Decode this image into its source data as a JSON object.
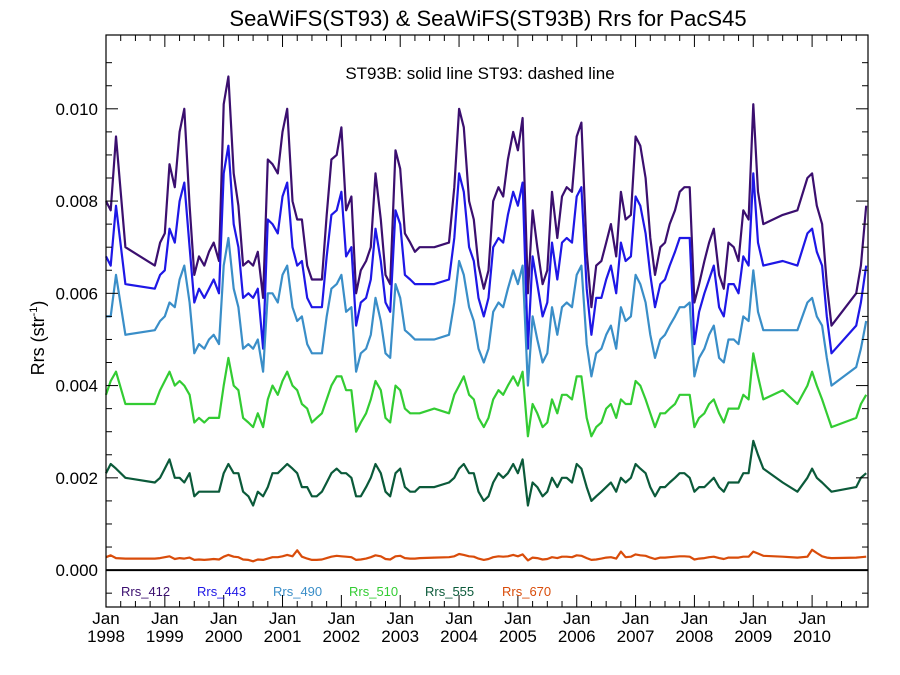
{
  "chart_data": {
    "type": "line",
    "title": "SeaWiFS(ST93) & SeaWiFS(ST93B)  Rrs for PacS45",
    "annotation": "ST93B: solid line   ST93: dashed line",
    "ylabel_main": "Rrs (str",
    "ylabel_sup": "-1",
    "ylabel_close": ")",
    "xlabel": "",
    "xlim": [
      1998.0,
      2010.95
    ],
    "ylim": [
      -0.0008,
      0.0116
    ],
    "grid": false,
    "legend_position": "bottom-left",
    "y_ticks": [
      {
        "value": 0.0,
        "label": "0.000"
      },
      {
        "value": 0.002,
        "label": "0.002"
      },
      {
        "value": 0.004,
        "label": "0.004"
      },
      {
        "value": 0.006,
        "label": "0.006"
      },
      {
        "value": 0.008,
        "label": "0.008"
      },
      {
        "value": 0.01,
        "label": "0.010"
      }
    ],
    "x_ticks": [
      {
        "value": 1998.0,
        "line1": "Jan",
        "line2": "1998"
      },
      {
        "value": 1999.0,
        "line1": "Jan",
        "line2": "1999"
      },
      {
        "value": 2000.0,
        "line1": "Jan",
        "line2": "2000"
      },
      {
        "value": 2001.0,
        "line1": "Jan",
        "line2": "2001"
      },
      {
        "value": 2002.0,
        "line1": "Jan",
        "line2": "2002"
      },
      {
        "value": 2003.0,
        "line1": "Jan",
        "line2": "2003"
      },
      {
        "value": 2004.0,
        "line1": "Jan",
        "line2": "2004"
      },
      {
        "value": 2005.0,
        "line1": "Jan",
        "line2": "2005"
      },
      {
        "value": 2006.0,
        "line1": "Jan",
        "line2": "2006"
      },
      {
        "value": 2007.0,
        "line1": "Jan",
        "line2": "2007"
      },
      {
        "value": 2008.0,
        "line1": "Jan",
        "line2": "2008"
      },
      {
        "value": 2009.0,
        "line1": "Jan",
        "line2": "2009"
      },
      {
        "value": 2010.0,
        "line1": "Jan",
        "line2": "2010"
      }
    ],
    "x": [
      1998.0,
      1998.08,
      1998.17,
      1998.33,
      1998.83,
      1998.92,
      1999.0,
      1999.08,
      1999.17,
      1999.25,
      1999.33,
      1999.42,
      1999.5,
      1999.58,
      1999.67,
      1999.75,
      1999.83,
      1999.92,
      2000.0,
      2000.08,
      2000.17,
      2000.25,
      2000.33,
      2000.42,
      2000.5,
      2000.58,
      2000.67,
      2000.75,
      2000.83,
      2000.92,
      2001.0,
      2001.08,
      2001.17,
      2001.25,
      2001.33,
      2001.42,
      2001.5,
      2001.58,
      2001.67,
      2001.75,
      2001.83,
      2001.92,
      2002.0,
      2002.08,
      2002.17,
      2002.25,
      2002.33,
      2002.42,
      2002.5,
      2002.58,
      2002.67,
      2002.75,
      2002.83,
      2002.92,
      2003.0,
      2003.08,
      2003.17,
      2003.25,
      2003.33,
      2003.58,
      2003.83,
      2003.92,
      2004.0,
      2004.08,
      2004.17,
      2004.25,
      2004.33,
      2004.42,
      2004.5,
      2004.58,
      2004.67,
      2004.75,
      2004.83,
      2004.92,
      2005.0,
      2005.08,
      2005.17,
      2005.25,
      2005.33,
      2005.42,
      2005.5,
      2005.58,
      2005.67,
      2005.75,
      2005.83,
      2005.92,
      2006.0,
      2006.08,
      2006.17,
      2006.25,
      2006.33,
      2006.42,
      2006.5,
      2006.58,
      2006.67,
      2006.75,
      2006.83,
      2006.92,
      2007.0,
      2007.08,
      2007.17,
      2007.25,
      2007.33,
      2007.42,
      2007.5,
      2007.58,
      2007.67,
      2007.75,
      2007.83,
      2007.92,
      2008.0,
      2008.08,
      2008.17,
      2008.25,
      2008.33,
      2008.42,
      2008.5,
      2008.58,
      2008.67,
      2008.75,
      2008.83,
      2008.92,
      2009.0,
      2009.08,
      2009.17,
      2009.5,
      2009.75,
      2009.92,
      2010.0,
      2010.08,
      2010.17,
      2010.25,
      2010.33,
      2010.75,
      2010.83,
      2010.92
    ],
    "series": [
      {
        "name": "Rrs_412",
        "color": "#3b0f6f",
        "values": [
          0.008,
          0.0078,
          0.0094,
          0.007,
          0.0066,
          0.0071,
          0.0073,
          0.0088,
          0.0083,
          0.0095,
          0.01,
          0.0079,
          0.0064,
          0.0068,
          0.0066,
          0.0069,
          0.0071,
          0.0067,
          0.0101,
          0.0107,
          0.0086,
          0.0079,
          0.0066,
          0.0067,
          0.0066,
          0.0069,
          0.0059,
          0.0089,
          0.0088,
          0.0086,
          0.0095,
          0.01,
          0.008,
          0.0076,
          0.0076,
          0.0066,
          0.0063,
          0.0063,
          0.0063,
          0.0077,
          0.0089,
          0.009,
          0.0096,
          0.0078,
          0.0081,
          0.006,
          0.0065,
          0.0067,
          0.007,
          0.0086,
          0.0076,
          0.0064,
          0.0062,
          0.0091,
          0.0087,
          0.0073,
          0.0071,
          0.0069,
          0.007,
          0.007,
          0.0071,
          0.0083,
          0.01,
          0.0096,
          0.008,
          0.0076,
          0.0066,
          0.0061,
          0.0065,
          0.008,
          0.0083,
          0.0081,
          0.0089,
          0.0095,
          0.0091,
          0.0098,
          0.006,
          0.0078,
          0.007,
          0.0062,
          0.0065,
          0.0082,
          0.0072,
          0.0081,
          0.0083,
          0.0082,
          0.0094,
          0.0097,
          0.0069,
          0.0057,
          0.0066,
          0.0067,
          0.0071,
          0.0075,
          0.0068,
          0.0082,
          0.0076,
          0.0077,
          0.0094,
          0.0092,
          0.0085,
          0.0072,
          0.0064,
          0.007,
          0.0071,
          0.0075,
          0.0078,
          0.0082,
          0.0083,
          0.0083,
          0.0058,
          0.0062,
          0.0067,
          0.0071,
          0.0074,
          0.0064,
          0.0061,
          0.0071,
          0.007,
          0.0067,
          0.0078,
          0.0076,
          0.0101,
          0.0082,
          0.0075,
          0.0077,
          0.0078,
          0.0085,
          0.0086,
          0.0079,
          0.0075,
          0.0062,
          0.0053,
          0.006,
          0.0066,
          0.0079
        ]
      },
      {
        "name": "Rrs_443",
        "color": "#1e17e6",
        "values": [
          0.0068,
          0.0066,
          0.0079,
          0.0062,
          0.0061,
          0.0064,
          0.0065,
          0.0074,
          0.0071,
          0.008,
          0.0084,
          0.007,
          0.0058,
          0.0061,
          0.0059,
          0.0061,
          0.0063,
          0.006,
          0.0086,
          0.0092,
          0.0075,
          0.007,
          0.0059,
          0.006,
          0.0059,
          0.0061,
          0.0048,
          0.0076,
          0.0075,
          0.0073,
          0.0081,
          0.0084,
          0.007,
          0.0066,
          0.0067,
          0.0059,
          0.0057,
          0.0057,
          0.0057,
          0.0068,
          0.0077,
          0.0078,
          0.0082,
          0.0068,
          0.007,
          0.0053,
          0.0058,
          0.0059,
          0.0063,
          0.0074,
          0.0067,
          0.0058,
          0.0056,
          0.0078,
          0.0075,
          0.0064,
          0.0063,
          0.0062,
          0.0062,
          0.0062,
          0.0063,
          0.0072,
          0.0086,
          0.0082,
          0.007,
          0.0067,
          0.0059,
          0.0055,
          0.0059,
          0.007,
          0.0072,
          0.0071,
          0.0077,
          0.0082,
          0.0079,
          0.0084,
          0.0048,
          0.0068,
          0.0062,
          0.0055,
          0.0058,
          0.0071,
          0.0063,
          0.0071,
          0.0072,
          0.0071,
          0.0081,
          0.0083,
          0.0061,
          0.0051,
          0.0059,
          0.0059,
          0.0063,
          0.0066,
          0.006,
          0.0071,
          0.0067,
          0.0068,
          0.0081,
          0.0079,
          0.0073,
          0.0064,
          0.0057,
          0.0062,
          0.0063,
          0.0066,
          0.0069,
          0.0072,
          0.0072,
          0.0072,
          0.0049,
          0.0056,
          0.006,
          0.0063,
          0.0066,
          0.0057,
          0.0055,
          0.0062,
          0.0062,
          0.006,
          0.0068,
          0.0066,
          0.0086,
          0.0071,
          0.0066,
          0.0067,
          0.0066,
          0.0073,
          0.0074,
          0.0069,
          0.0066,
          0.0055,
          0.0047,
          0.0053,
          0.0058,
          0.0066
        ]
      },
      {
        "name": "Rrs_490",
        "color": "#3a8ec8",
        "values": [
          0.0055,
          0.0055,
          0.0064,
          0.0051,
          0.0052,
          0.0054,
          0.0055,
          0.0058,
          0.0057,
          0.0063,
          0.0066,
          0.0058,
          0.0047,
          0.0049,
          0.0048,
          0.005,
          0.0051,
          0.0049,
          0.0066,
          0.0072,
          0.0061,
          0.0057,
          0.0048,
          0.0049,
          0.0048,
          0.005,
          0.0043,
          0.006,
          0.006,
          0.0058,
          0.0064,
          0.0066,
          0.0057,
          0.0054,
          0.0055,
          0.0049,
          0.0047,
          0.0047,
          0.0047,
          0.0055,
          0.0061,
          0.0062,
          0.0064,
          0.0056,
          0.0057,
          0.0043,
          0.0047,
          0.0048,
          0.0051,
          0.0059,
          0.0054,
          0.0047,
          0.0046,
          0.0062,
          0.0059,
          0.0052,
          0.0051,
          0.005,
          0.005,
          0.005,
          0.0051,
          0.0058,
          0.0067,
          0.0064,
          0.0057,
          0.0054,
          0.0048,
          0.0045,
          0.0048,
          0.0056,
          0.0058,
          0.0057,
          0.0061,
          0.0065,
          0.0062,
          0.0066,
          0.004,
          0.0055,
          0.005,
          0.0045,
          0.0047,
          0.0057,
          0.0051,
          0.0057,
          0.0058,
          0.0057,
          0.0064,
          0.0066,
          0.0049,
          0.0042,
          0.0047,
          0.0048,
          0.0051,
          0.0053,
          0.0048,
          0.0057,
          0.0054,
          0.0055,
          0.0064,
          0.0062,
          0.0058,
          0.0051,
          0.0046,
          0.005,
          0.0051,
          0.0053,
          0.0055,
          0.0057,
          0.0057,
          0.0058,
          0.0042,
          0.0046,
          0.0048,
          0.0051,
          0.0053,
          0.0046,
          0.0045,
          0.005,
          0.005,
          0.0049,
          0.0055,
          0.0054,
          0.0065,
          0.0056,
          0.0052,
          0.0052,
          0.0052,
          0.0058,
          0.0059,
          0.0055,
          0.0053,
          0.0046,
          0.004,
          0.0044,
          0.0048,
          0.0054
        ]
      },
      {
        "name": "Rrs_510",
        "color": "#33cc33",
        "values": [
          0.0038,
          0.0041,
          0.0043,
          0.0036,
          0.0036,
          0.0039,
          0.0041,
          0.0043,
          0.004,
          0.0041,
          0.004,
          0.0038,
          0.0032,
          0.0033,
          0.0032,
          0.0033,
          0.0033,
          0.0033,
          0.004,
          0.0046,
          0.004,
          0.0039,
          0.0033,
          0.0032,
          0.0031,
          0.0034,
          0.0031,
          0.0037,
          0.004,
          0.0038,
          0.0041,
          0.0043,
          0.004,
          0.0039,
          0.0036,
          0.0035,
          0.0032,
          0.0033,
          0.0034,
          0.0037,
          0.004,
          0.0042,
          0.0042,
          0.0039,
          0.0039,
          0.003,
          0.0032,
          0.0034,
          0.0037,
          0.0041,
          0.0039,
          0.0033,
          0.0032,
          0.004,
          0.0039,
          0.0035,
          0.0034,
          0.0034,
          0.0034,
          0.0035,
          0.0034,
          0.0038,
          0.004,
          0.0042,
          0.0038,
          0.0037,
          0.0033,
          0.0031,
          0.0033,
          0.0037,
          0.0039,
          0.0038,
          0.004,
          0.0042,
          0.004,
          0.0043,
          0.0029,
          0.0036,
          0.0034,
          0.0031,
          0.0032,
          0.0037,
          0.0034,
          0.0038,
          0.0038,
          0.0037,
          0.0042,
          0.0042,
          0.0033,
          0.0029,
          0.0031,
          0.0032,
          0.0035,
          0.0036,
          0.0033,
          0.0037,
          0.0036,
          0.0036,
          0.0041,
          0.004,
          0.0037,
          0.0034,
          0.0031,
          0.0034,
          0.0034,
          0.0035,
          0.0036,
          0.0038,
          0.0038,
          0.0038,
          0.0031,
          0.0033,
          0.0034,
          0.0036,
          0.0037,
          0.0034,
          0.0032,
          0.0035,
          0.0035,
          0.0035,
          0.0038,
          0.0037,
          0.0047,
          0.0042,
          0.0037,
          0.0039,
          0.0036,
          0.004,
          0.0043,
          0.004,
          0.0037,
          0.0034,
          0.0031,
          0.0033,
          0.0036,
          0.0038
        ]
      },
      {
        "name": "Rrs_555",
        "color": "#0b5a3a",
        "values": [
          0.0021,
          0.0023,
          0.0022,
          0.002,
          0.0019,
          0.002,
          0.0022,
          0.0024,
          0.002,
          0.002,
          0.0019,
          0.0021,
          0.0016,
          0.0017,
          0.0017,
          0.0017,
          0.0017,
          0.0017,
          0.0021,
          0.0023,
          0.0021,
          0.0021,
          0.0017,
          0.0016,
          0.0014,
          0.0017,
          0.0016,
          0.0018,
          0.0021,
          0.0021,
          0.0022,
          0.0023,
          0.0022,
          0.0021,
          0.0018,
          0.0018,
          0.0016,
          0.0016,
          0.0017,
          0.0019,
          0.0021,
          0.0022,
          0.0021,
          0.0021,
          0.002,
          0.0016,
          0.0016,
          0.0018,
          0.002,
          0.0023,
          0.0021,
          0.0017,
          0.0016,
          0.0021,
          0.0022,
          0.0018,
          0.0017,
          0.0017,
          0.0018,
          0.0018,
          0.0019,
          0.002,
          0.0022,
          0.0023,
          0.0021,
          0.0021,
          0.0017,
          0.0015,
          0.0016,
          0.0019,
          0.0021,
          0.002,
          0.0021,
          0.0023,
          0.0021,
          0.0024,
          0.0014,
          0.0019,
          0.0018,
          0.0016,
          0.0017,
          0.002,
          0.0018,
          0.002,
          0.002,
          0.0019,
          0.0023,
          0.0022,
          0.0018,
          0.0015,
          0.0016,
          0.0017,
          0.0018,
          0.0019,
          0.0017,
          0.002,
          0.0019,
          0.002,
          0.0023,
          0.0022,
          0.0021,
          0.0018,
          0.0016,
          0.0018,
          0.0018,
          0.0019,
          0.002,
          0.0021,
          0.0021,
          0.002,
          0.0017,
          0.0018,
          0.0018,
          0.0019,
          0.002,
          0.0018,
          0.0017,
          0.0019,
          0.0019,
          0.0019,
          0.0021,
          0.0021,
          0.0028,
          0.0025,
          0.0022,
          0.0019,
          0.0017,
          0.002,
          0.0022,
          0.002,
          0.0019,
          0.0018,
          0.0017,
          0.0018,
          0.002,
          0.0021
        ]
      },
      {
        "name": "Rrs_670",
        "color": "#d94c0a",
        "values": [
          0.00028,
          0.00032,
          0.00026,
          0.00025,
          0.00025,
          0.00026,
          0.00028,
          0.0003,
          0.00024,
          0.00026,
          0.00025,
          0.00027,
          0.00022,
          0.00023,
          0.00022,
          0.00023,
          0.00024,
          0.00023,
          0.00029,
          0.00033,
          0.00029,
          0.00028,
          0.00023,
          0.00022,
          0.00019,
          0.00023,
          0.00022,
          0.00025,
          0.00028,
          0.00028,
          0.0003,
          0.00033,
          0.0003,
          0.00043,
          0.00029,
          0.00025,
          0.00022,
          0.00022,
          0.00023,
          0.00026,
          0.00029,
          0.00031,
          0.0003,
          0.00029,
          0.00028,
          0.00022,
          0.00023,
          0.00025,
          0.00028,
          0.00032,
          0.0003,
          0.00024,
          0.00023,
          0.0003,
          0.00031,
          0.00026,
          0.00025,
          0.00025,
          0.00026,
          0.00027,
          0.00028,
          0.0003,
          0.00035,
          0.00033,
          0.0003,
          0.00029,
          0.00025,
          0.00022,
          0.00024,
          0.00028,
          0.0003,
          0.00029,
          0.0003,
          0.00033,
          0.0003,
          0.00034,
          0.00021,
          0.00027,
          0.00026,
          0.00023,
          0.00024,
          0.00028,
          0.00026,
          0.00029,
          0.00029,
          0.00028,
          0.00032,
          0.00031,
          0.00026,
          0.00022,
          0.00023,
          0.00025,
          0.00027,
          0.00028,
          0.00025,
          0.0004,
          0.00028,
          0.00029,
          0.00034,
          0.00032,
          0.00031,
          0.00027,
          0.00024,
          0.00027,
          0.00027,
          0.00028,
          0.00029,
          0.0003,
          0.0003,
          0.00029,
          0.00023,
          0.00025,
          0.00026,
          0.00028,
          0.00029,
          0.00026,
          0.00024,
          0.00027,
          0.00027,
          0.00027,
          0.00029,
          0.00029,
          0.0004,
          0.00036,
          0.00031,
          0.00029,
          0.00027,
          0.00029,
          0.00044,
          0.00037,
          0.0003,
          0.00027,
          0.00026,
          0.00027,
          0.00028,
          0.00029
        ]
      }
    ]
  }
}
